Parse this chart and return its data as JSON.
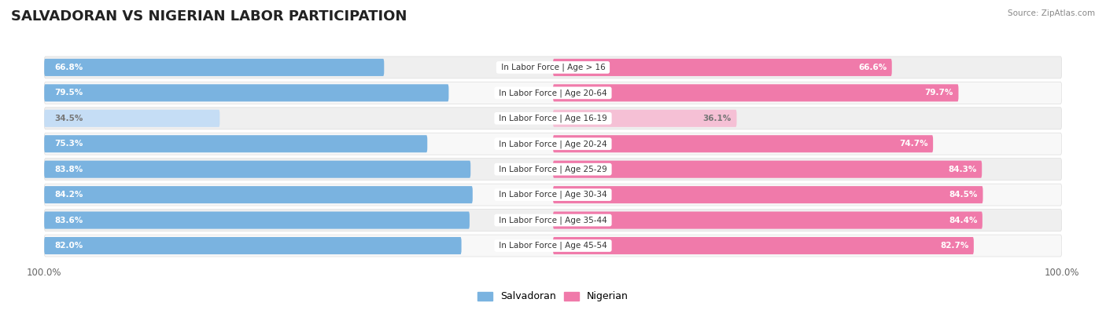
{
  "title": "SALVADORAN VS NIGERIAN LABOR PARTICIPATION",
  "source": "Source: ZipAtlas.com",
  "categories": [
    "In Labor Force | Age > 16",
    "In Labor Force | Age 20-64",
    "In Labor Force | Age 16-19",
    "In Labor Force | Age 20-24",
    "In Labor Force | Age 25-29",
    "In Labor Force | Age 30-34",
    "In Labor Force | Age 35-44",
    "In Labor Force | Age 45-54"
  ],
  "salvadoran": [
    66.8,
    79.5,
    34.5,
    75.3,
    83.8,
    84.2,
    83.6,
    82.0
  ],
  "nigerian": [
    66.6,
    79.7,
    36.1,
    74.7,
    84.3,
    84.5,
    84.4,
    82.7
  ],
  "salvadoran_color_strong": "#7ab3e0",
  "salvadoran_color_light": "#c5ddf5",
  "nigerian_color_strong": "#f07aaa",
  "nigerian_color_light": "#f5c0d5",
  "row_bg_even": "#efefef",
  "row_bg_odd": "#f8f8f8",
  "bar_height": 0.68,
  "max_val": 100.0,
  "title_fontsize": 13,
  "label_fontsize": 7.5,
  "value_fontsize": 7.5,
  "legend_fontsize": 9,
  "axis_label_fontsize": 8.5,
  "light_threshold": 50.0
}
